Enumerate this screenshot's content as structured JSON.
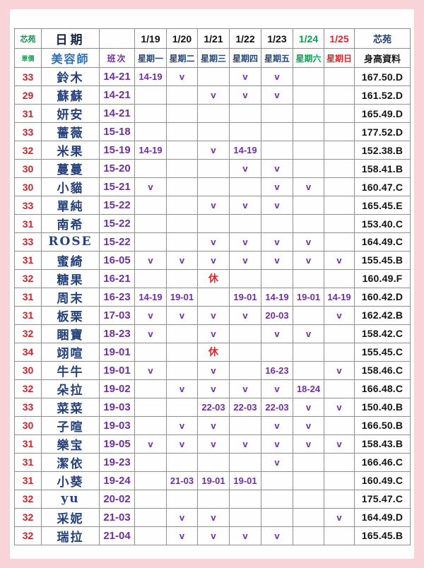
{
  "colors": {
    "page_bg": "#f8d3d8",
    "sheet_bg": "#fffefe",
    "grid": "#8f8f8f",
    "price_red": "#d0232a",
    "name_navy": "#26427c",
    "shift_purple": "#7030a0",
    "saturday_green": "#00a64f",
    "sunday_red": "#e3242b"
  },
  "table": {
    "type": "table",
    "corner_top_left": "芯苑",
    "price_label": "單價",
    "date_label": "日期",
    "therapist_label": "美容師",
    "shift_label": "班次",
    "corner_top_right": "芯苑",
    "height_label": "身高資料",
    "dates": [
      "1/19",
      "1/20",
      "1/21",
      "1/22",
      "1/23",
      "1/24",
      "1/25"
    ],
    "date_colors": [
      "black",
      "black",
      "black",
      "black",
      "black",
      "green",
      "red"
    ],
    "weekdays": [
      "星期一",
      "星期二",
      "星期三",
      "星期四",
      "星期五",
      "星期六",
      "星期日"
    ],
    "weekday_colors": [
      "navy",
      "navy",
      "navy",
      "navy",
      "navy",
      "green",
      "red"
    ],
    "rest_mark": "休",
    "check_mark": "v",
    "rows": [
      {
        "price": "33",
        "name": "鈴木",
        "shift": "14-21",
        "days": [
          "14-19",
          "v",
          "",
          "v",
          "v",
          "",
          ""
        ],
        "height": "167.50.D"
      },
      {
        "price": "29",
        "name": "蘇蘇",
        "shift": "14-21",
        "days": [
          "",
          "",
          "v",
          "v",
          "v",
          "",
          ""
        ],
        "height": "161.52.D"
      },
      {
        "price": "31",
        "name": "妍安",
        "shift": "14-21",
        "days": [
          "",
          "",
          "",
          "",
          "",
          "",
          ""
        ],
        "height": "165.49.D"
      },
      {
        "price": "33",
        "name": "薔薇",
        "shift": "15-18",
        "days": [
          "",
          "",
          "",
          "",
          "",
          "",
          ""
        ],
        "height": "177.52.D"
      },
      {
        "price": "32",
        "name": "米果",
        "shift": "15-19",
        "days": [
          "14-19",
          "",
          "v",
          "14-19",
          "",
          "",
          ""
        ],
        "height": "152.38.B"
      },
      {
        "price": "30",
        "name": "蔓蔓",
        "shift": "15-20",
        "days": [
          "",
          "",
          "",
          "v",
          "v",
          "",
          ""
        ],
        "height": "158.41.B"
      },
      {
        "price": "30",
        "name": "小貓",
        "shift": "15-21",
        "days": [
          "v",
          "",
          "",
          "",
          "v",
          "v",
          ""
        ],
        "height": "160.47.C"
      },
      {
        "price": "33",
        "name": "單純",
        "shift": "15-22",
        "days": [
          "",
          "",
          "v",
          "v",
          "v",
          "",
          ""
        ],
        "height": "165.45.E"
      },
      {
        "price": "31",
        "name": "南希",
        "shift": "15-22",
        "days": [
          "",
          "",
          "",
          "",
          "",
          "",
          ""
        ],
        "height": "153.40.C"
      },
      {
        "price": "33",
        "name": "ROSE",
        "shift": "15-22",
        "days": [
          "",
          "",
          "v",
          "v",
          "v",
          "v",
          ""
        ],
        "height": "164.49.C"
      },
      {
        "price": "31",
        "name": "蜜綺",
        "shift": "16-05",
        "days": [
          "v",
          "v",
          "v",
          "v",
          "v",
          "v",
          "v"
        ],
        "height": "155.45.B"
      },
      {
        "price": "32",
        "name": "糖果",
        "shift": "16-21",
        "days": [
          "",
          "",
          "休",
          "",
          "",
          "",
          ""
        ],
        "height": "160.49.F"
      },
      {
        "price": "31",
        "name": "周末",
        "shift": "16-23",
        "days": [
          "14-19",
          "19-01",
          "",
          "19-01",
          "14-19",
          "19-01",
          "14-19"
        ],
        "height": "160.42.D"
      },
      {
        "price": "31",
        "name": "板栗",
        "shift": "17-03",
        "days": [
          "v",
          "v",
          "v",
          "v",
          "20-03",
          "",
          "v"
        ],
        "height": "162.42.B"
      },
      {
        "price": "32",
        "name": "睏寶",
        "shift": "18-23",
        "days": [
          "v",
          "",
          "v",
          "",
          "v",
          "v",
          ""
        ],
        "height": "158.42.C"
      },
      {
        "price": "34",
        "name": "翊喧",
        "shift": "19-01",
        "days": [
          "",
          "",
          "休",
          "",
          "",
          "",
          ""
        ],
        "height": "155.45.C"
      },
      {
        "price": "30",
        "name": "牛牛",
        "shift": "19-01",
        "days": [
          "v",
          "",
          "v",
          "",
          "16-23",
          "",
          "v"
        ],
        "height": "158.46.C"
      },
      {
        "price": "32",
        "name": "朵拉",
        "shift": "19-02",
        "days": [
          "",
          "v",
          "v",
          "v",
          "v",
          "18-24",
          ""
        ],
        "height": "166.48.C"
      },
      {
        "price": "33",
        "name": "菜菜",
        "shift": "19-03",
        "days": [
          "",
          "",
          "22-03",
          "22-03",
          "22-03",
          "v",
          "v"
        ],
        "height": "150.40.B"
      },
      {
        "price": "30",
        "name": "子暄",
        "shift": "19-03",
        "days": [
          "",
          "v",
          "v",
          "",
          "v",
          "v",
          ""
        ],
        "height": "166.50.B"
      },
      {
        "price": "31",
        "name": "樂宝",
        "shift": "19-05",
        "days": [
          "v",
          "v",
          "v",
          "v",
          "v",
          "v",
          "v"
        ],
        "height": "158.43.B"
      },
      {
        "price": "31",
        "name": "潔依",
        "shift": "19-23",
        "days": [
          "",
          "",
          "",
          "",
          "v",
          "",
          ""
        ],
        "height": "166.46.C"
      },
      {
        "price": "31",
        "name": "小葵",
        "shift": "19-24",
        "days": [
          "",
          "21-03",
          "19-01",
          "19-01",
          "",
          "",
          ""
        ],
        "height": "160.49.C"
      },
      {
        "price": "32",
        "name": "yu",
        "shift": "20-02",
        "days": [
          "",
          "",
          "",
          "",
          "",
          "",
          ""
        ],
        "height": "175.47.C"
      },
      {
        "price": "32",
        "name": "采妮",
        "shift": "21-03",
        "days": [
          "",
          "v",
          "v",
          "",
          "",
          "",
          "v"
        ],
        "height": "164.49.D"
      },
      {
        "price": "32",
        "name": "瑞拉",
        "shift": "21-04",
        "days": [
          "",
          "v",
          "v",
          "v",
          "v",
          "",
          ""
        ],
        "height": "165.45.B"
      }
    ]
  }
}
